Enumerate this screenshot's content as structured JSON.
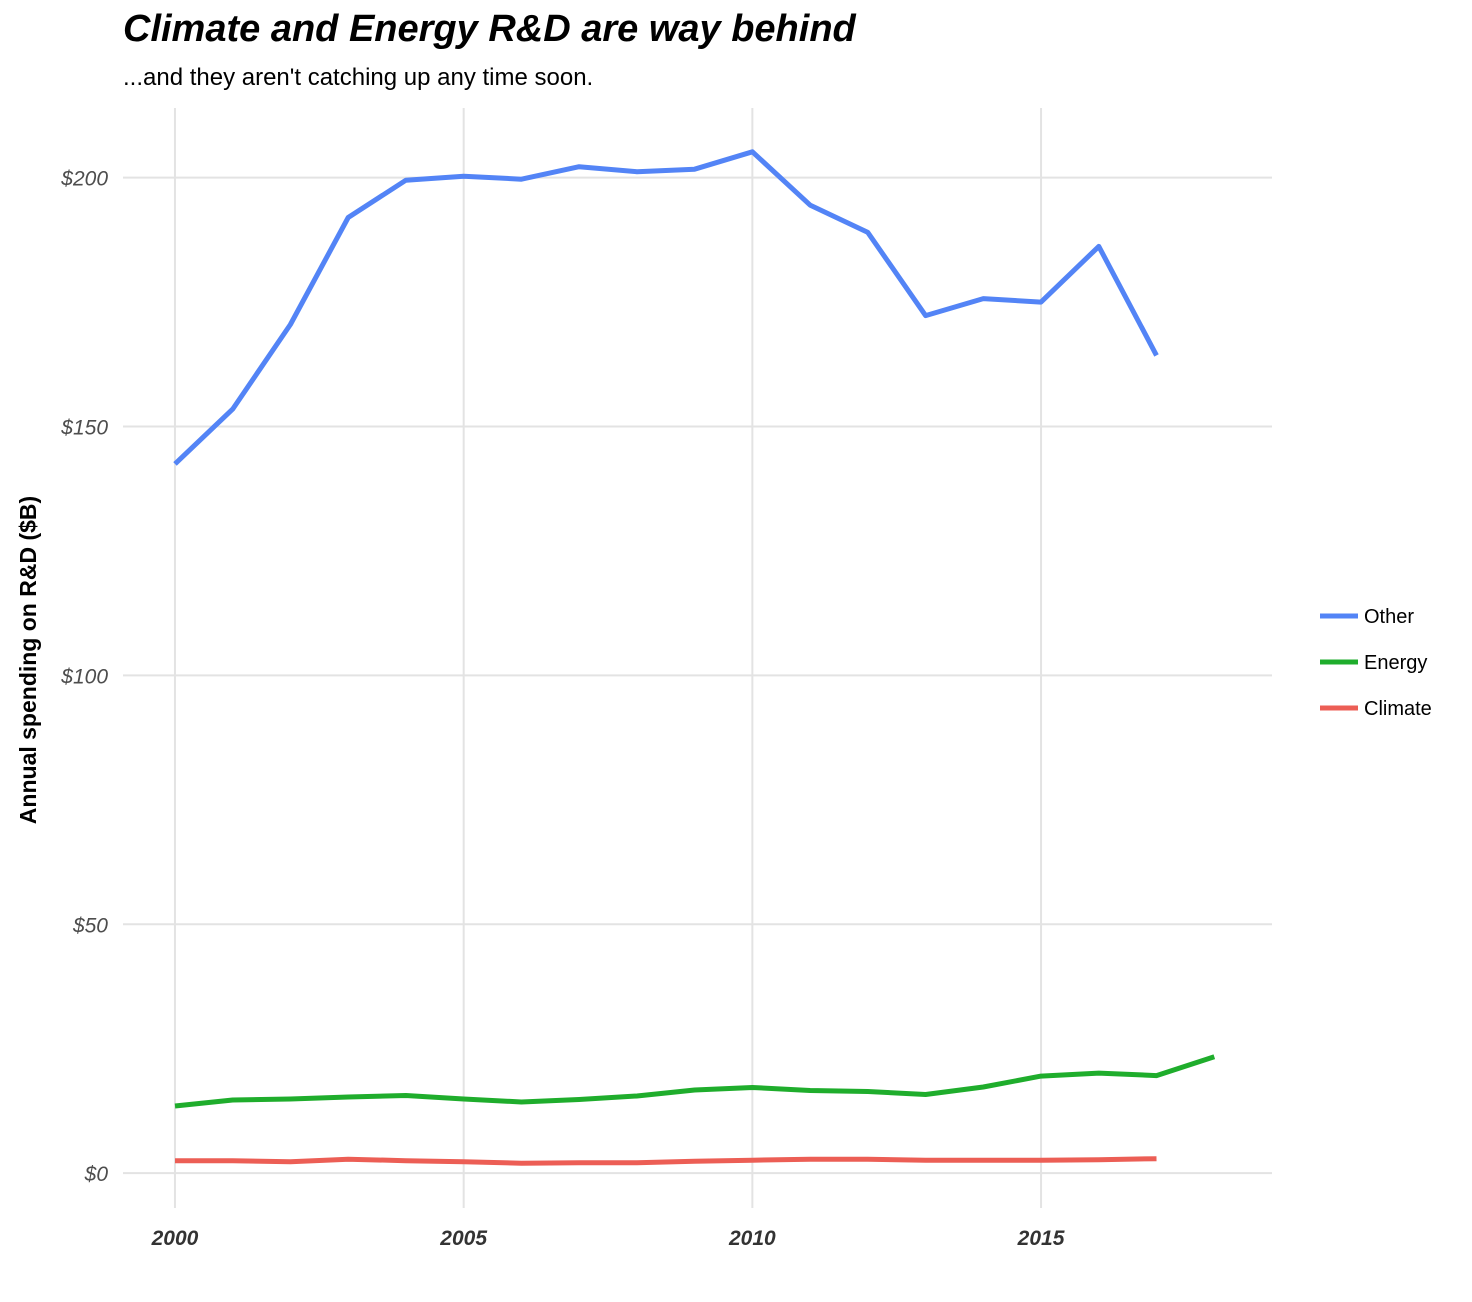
{
  "chart_data": {
    "type": "line",
    "title": "Climate and Energy R&D are way behind",
    "subtitle": "...and they aren't catching up any time soon.",
    "xlabel": "",
    "ylabel": "Annual spending on R&D ($B)",
    "xlim": [
      1999.1,
      2019
    ],
    "ylim": [
      -7,
      214
    ],
    "x_ticks": [
      2000,
      2005,
      2010,
      2015
    ],
    "x_tick_labels": [
      "2000",
      "2005",
      "2010",
      "2015"
    ],
    "y_ticks": [
      0,
      50,
      100,
      150,
      200
    ],
    "y_tick_labels": [
      "$0",
      "$50",
      "$100",
      "$150",
      "$200"
    ],
    "grid": true,
    "legend_position": "right",
    "series": [
      {
        "name": "Other",
        "color": "#5384f6",
        "x": [
          2000,
          2001,
          2002,
          2003,
          2004,
          2005,
          2006,
          2007,
          2008,
          2009,
          2010,
          2011,
          2012,
          2013,
          2014,
          2015,
          2016,
          2017
        ],
        "values": [
          142.5,
          153.5,
          170.5,
          192,
          199.5,
          200.3,
          199.7,
          202.2,
          201.2,
          201.7,
          205.2,
          194.5,
          189,
          172.3,
          175.7,
          175,
          186.2,
          164.3
        ]
      },
      {
        "name": "Energy",
        "color": "#1fad2c",
        "x": [
          2000,
          2001,
          2002,
          2003,
          2004,
          2005,
          2006,
          2007,
          2008,
          2009,
          2010,
          2011,
          2012,
          2013,
          2014,
          2015,
          2016,
          2017,
          2018
        ],
        "values": [
          13.5,
          14.7,
          14.9,
          15.3,
          15.6,
          14.9,
          14.3,
          14.8,
          15.5,
          16.7,
          17.2,
          16.6,
          16.4,
          15.8,
          17.3,
          19.5,
          20.1,
          19.6,
          23.4
        ]
      },
      {
        "name": "Climate",
        "color": "#ec5e55",
        "x": [
          2000,
          2001,
          2002,
          2003,
          2004,
          2005,
          2006,
          2007,
          2008,
          2009,
          2010,
          2011,
          2012,
          2013,
          2014,
          2015,
          2016,
          2017
        ],
        "values": [
          2.5,
          2.5,
          2.3,
          2.8,
          2.5,
          2.3,
          2.0,
          2.1,
          2.1,
          2.4,
          2.6,
          2.8,
          2.8,
          2.6,
          2.6,
          2.6,
          2.7,
          2.9
        ]
      }
    ]
  }
}
